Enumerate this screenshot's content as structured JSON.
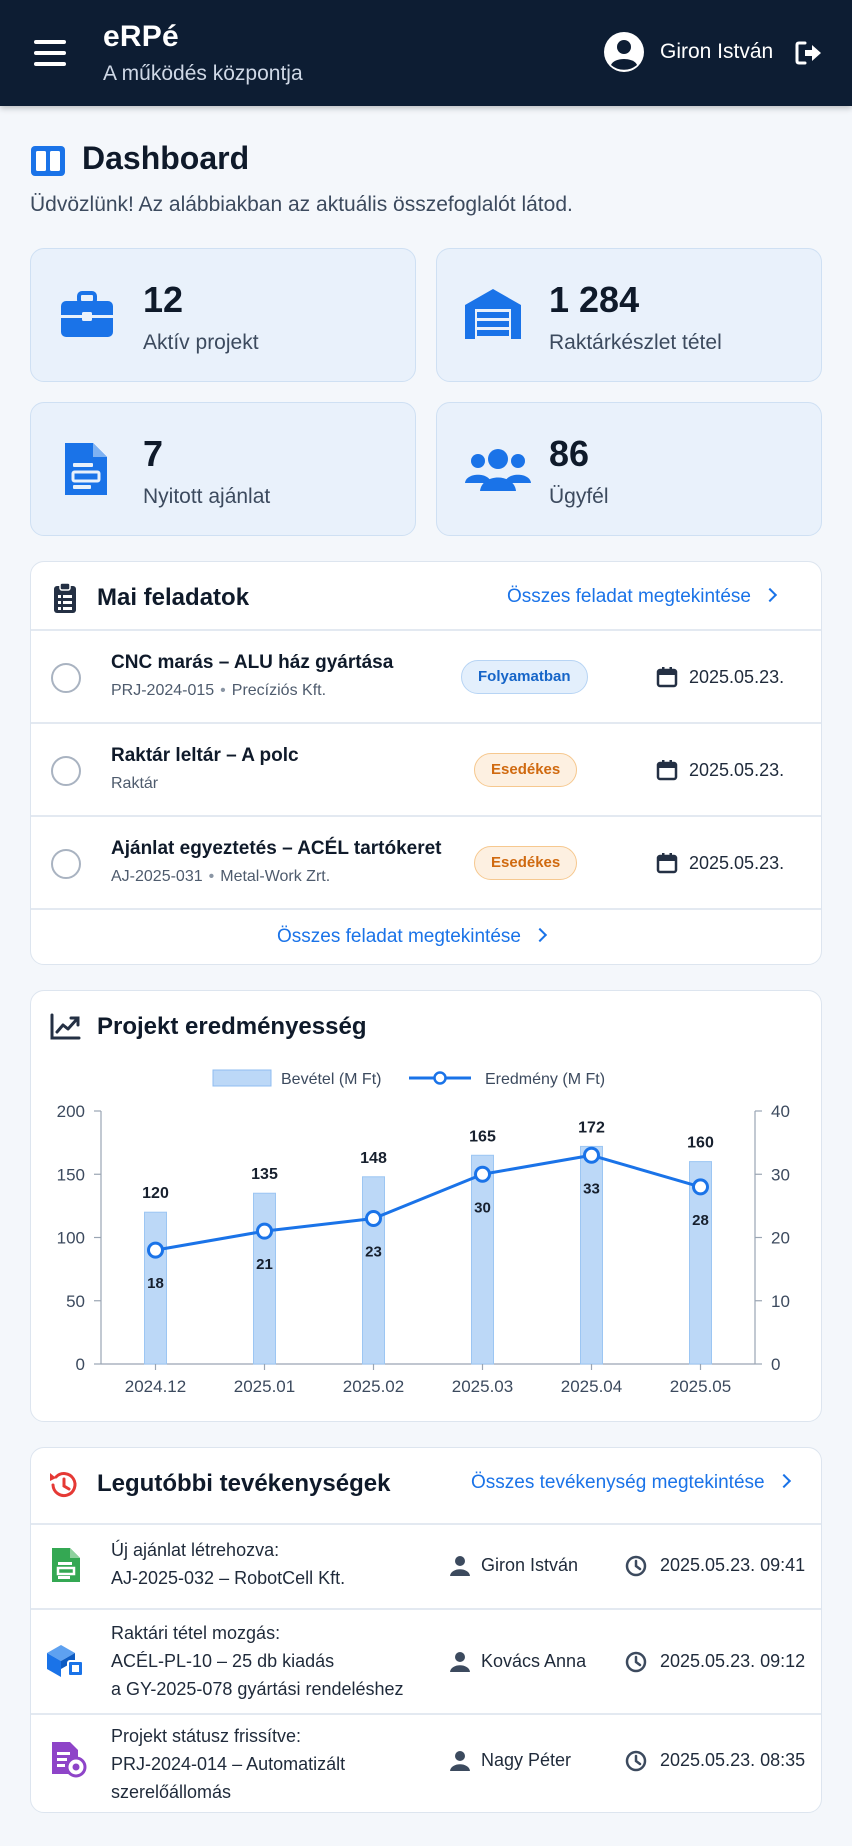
{
  "app": {
    "title": "eRPé",
    "subtitle": "A működés központja",
    "user": "Giron István"
  },
  "header": {
    "title": "Dashboard",
    "subtitle": "Üdvözlünk! Az alábbiakban az aktuális összefoglalót látod."
  },
  "stats": [
    {
      "value": "12",
      "label": "Aktív projekt",
      "icon": "briefcase-icon"
    },
    {
      "value": "1 284",
      "label": "Raktárkészlet tétel",
      "icon": "warehouse-icon"
    },
    {
      "value": "7",
      "label": "Nyitott ajánlat",
      "icon": "document-icon"
    },
    {
      "value": "86",
      "label": "Ügyfél",
      "icon": "users-icon"
    }
  ],
  "tasks": {
    "title": "Mai feladatok",
    "link_top": "Összes feladat megtekintése",
    "link_bottom": "Összes feladat megtekintése",
    "items": [
      {
        "title": "CNC marás – ALU ház gyártása",
        "code": "PRJ-2024-015",
        "client": "Precíziós Kft.",
        "status": "Folyamatban",
        "date": "2025.05.23."
      },
      {
        "title": "Raktár leltár – A polc",
        "code": "",
        "client": "Raktár",
        "status": "Esedékes",
        "date": "2025.05.23."
      },
      {
        "title": "Ajánlat egyeztetés – ACÉL tartókeret",
        "code": "AJ-2025-031",
        "client": "Metal-Work Zrt.",
        "status": "Esedékes",
        "date": "2025.05.23."
      }
    ]
  },
  "chart": {
    "title": "Projekt eredményesség"
  },
  "chart_data": {
    "type": "bar",
    "categories": [
      "2024.12",
      "2025.01",
      "2025.02",
      "2025.03",
      "2025.04",
      "2025.05"
    ],
    "series": [
      {
        "name": "Bevétel (M Ft)",
        "type": "bar",
        "axis": "left",
        "values": [
          120,
          135,
          148,
          165,
          172,
          160
        ],
        "color": "#bcd8f7"
      },
      {
        "name": "Eredmény (M Ft)",
        "type": "line",
        "axis": "right",
        "values": [
          18,
          21,
          23,
          30,
          33,
          28
        ],
        "color": "#1a73e8"
      }
    ],
    "ylim_left": [
      0,
      200
    ],
    "yticks_left": [
      0,
      50,
      100,
      150,
      200
    ],
    "ylim_right": [
      0,
      40
    ],
    "yticks_right": [
      0,
      10,
      20,
      30,
      40
    ],
    "legend_position": "top-center",
    "grid": false
  },
  "activities": {
    "title": "Legutóbbi tevékenységek",
    "link": "Összes tevékenység megtekintése",
    "items": [
      {
        "lines": [
          "Új ajánlat létrehozva:",
          "AJ-2025-032 – RobotCell Kft."
        ],
        "user": "Giron István",
        "time": "2025.05.23. 09:41",
        "icon": "document-add-icon",
        "color": "#34a853"
      },
      {
        "lines": [
          "Raktári tétel mozgás:",
          "ACÉL-PL-10 – 25 db kiadás",
          "a GY-2025-078 gyártási rendeléshez"
        ],
        "user": "Kovács Anna",
        "time": "2025.05.23. 09:12",
        "icon": "inventory-icon",
        "color": "#1a73e8"
      },
      {
        "lines": [
          "Projekt státusz frissítve:",
          "PRJ-2024-014 – Automatizált",
          "szerelőállomás"
        ],
        "user": "Nagy Péter",
        "time": "2025.05.23. 08:35",
        "icon": "status-update-icon",
        "color": "#8e44c8"
      }
    ]
  },
  "colors": {
    "topbar": "#0d1d33",
    "accent": "#1a73e8",
    "badge_blue": "#1665c8",
    "badge_orange": "#d06a10"
  }
}
